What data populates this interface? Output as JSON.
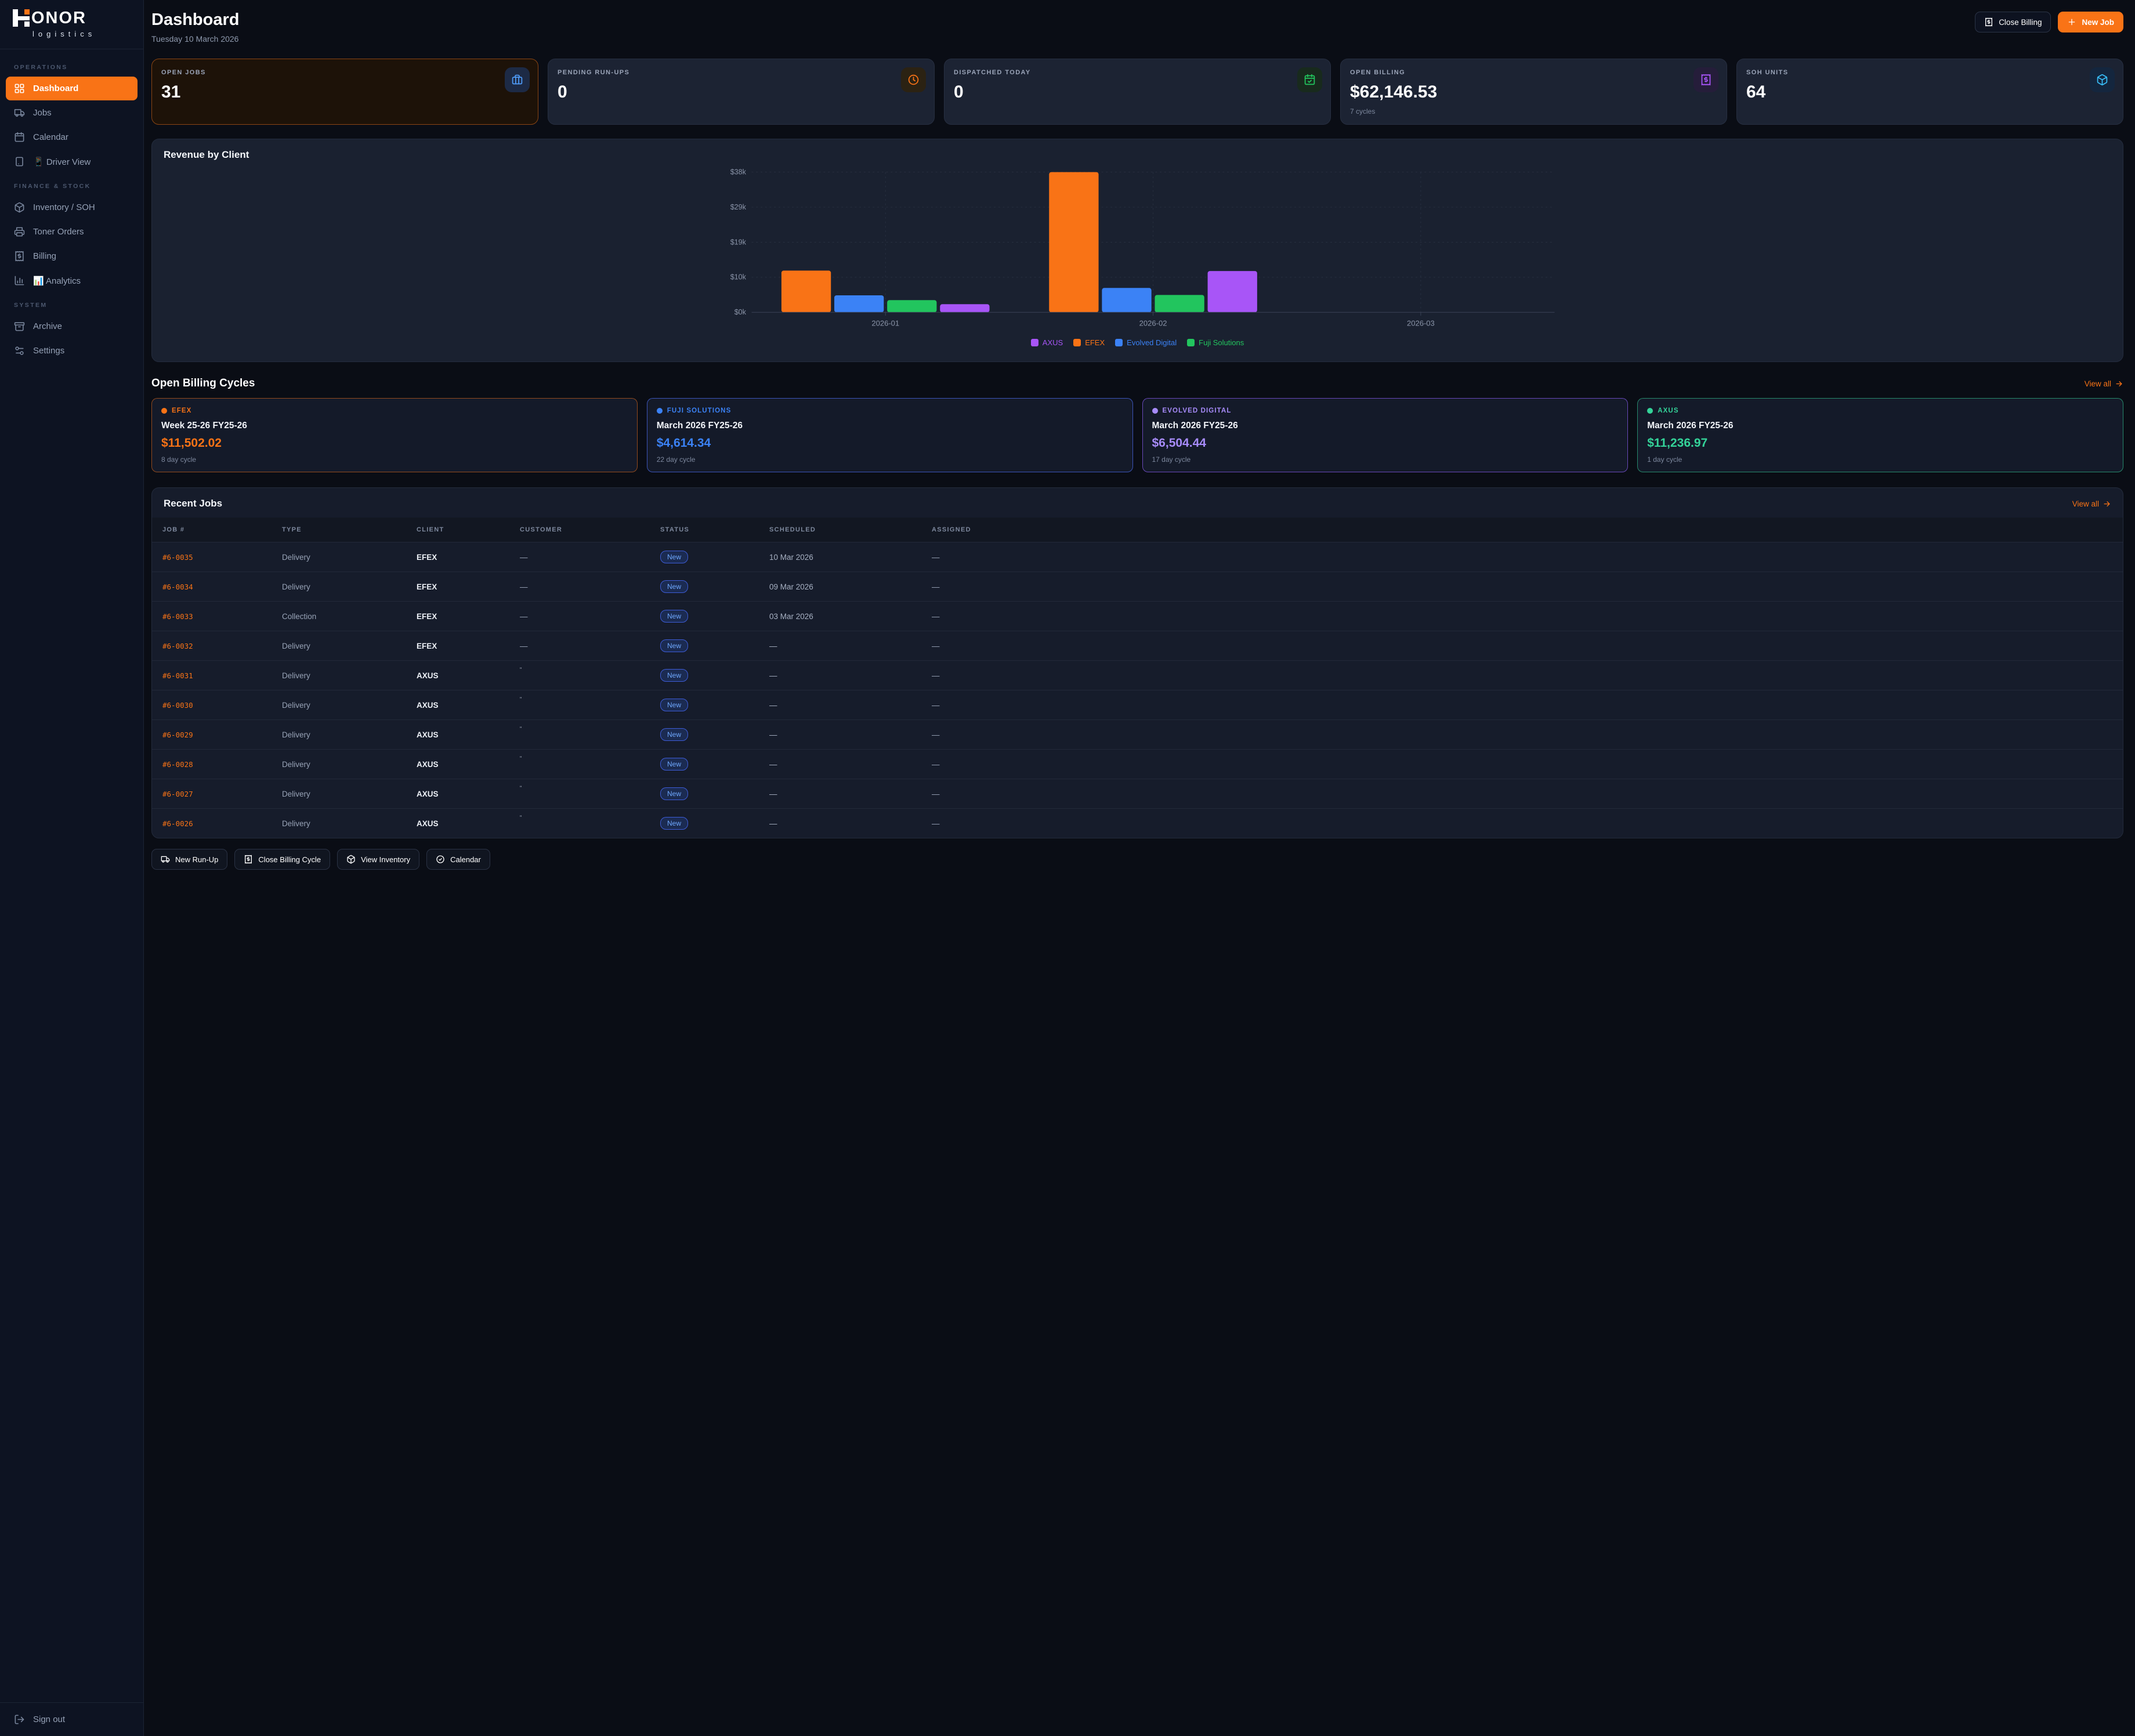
{
  "brand": {
    "mark_letter": "H",
    "name_rest": "ONOR",
    "subtitle": "logistics"
  },
  "header": {
    "title": "Dashboard",
    "date": "Tuesday 10 March 2026",
    "close_billing_label": "Close Billing",
    "new_job_label": "New Job"
  },
  "sidebar": {
    "sections": [
      {
        "label": "OPERATIONS",
        "items": [
          {
            "icon": "dashboard-icon",
            "label": "Dashboard",
            "active": true
          },
          {
            "icon": "truck-icon",
            "label": "Jobs"
          },
          {
            "icon": "calendar-icon",
            "label": "Calendar"
          },
          {
            "icon": "tablet-icon",
            "label": "📱 Driver View"
          }
        ]
      },
      {
        "label": "FINANCE & STOCK",
        "items": [
          {
            "icon": "package-icon",
            "label": "Inventory / SOH"
          },
          {
            "icon": "printer-icon",
            "label": "Toner Orders"
          },
          {
            "icon": "receipt-icon",
            "label": "Billing"
          },
          {
            "icon": "chart-icon",
            "label": "📊 Analytics"
          }
        ]
      },
      {
        "label": "SYSTEM",
        "items": [
          {
            "icon": "archive-icon",
            "label": "Archive"
          },
          {
            "icon": "settings-icon",
            "label": "Settings"
          }
        ]
      }
    ],
    "sign_out_label": "Sign out"
  },
  "stats": [
    {
      "label": "OPEN JOBS",
      "value": "31",
      "icon": "briefcase-icon",
      "icon_color": "#4f9bf8",
      "tile_bg": "#1d2a45",
      "highlight": true
    },
    {
      "label": "PENDING RUN-UPS",
      "value": "0",
      "icon": "clock-icon",
      "icon_color": "#f97316",
      "tile_bg": "#2b2213"
    },
    {
      "label": "DISPATCHED TODAY",
      "value": "0",
      "icon": "calendar-check-icon",
      "icon_color": "#22c55e",
      "tile_bg": "#182a1d"
    },
    {
      "label": "OPEN BILLING",
      "value": "$62,146.53",
      "sub": "7 cycles",
      "icon": "receipt-icon",
      "icon_color": "#a855f7",
      "tile_bg": "#251d3a"
    },
    {
      "label": "SOH UNITS",
      "value": "64",
      "icon": "package-icon",
      "icon_color": "#38bdf8",
      "tile_bg": "#14263e"
    }
  ],
  "chart_data": {
    "type": "bar",
    "title": "Revenue by Client",
    "categories": [
      "2026-01",
      "2026-02",
      "2026-03"
    ],
    "series": [
      {
        "name": "EFEX",
        "color": "#f97316",
        "values": [
          11300,
          38000,
          0
        ]
      },
      {
        "name": "Evolved Digital",
        "color": "#3b82f6",
        "values": [
          4600,
          6600,
          0
        ]
      },
      {
        "name": "Fuji Solutions",
        "color": "#22c55e",
        "values": [
          3300,
          4700,
          0
        ]
      },
      {
        "name": "AXUS",
        "color": "#a855f7",
        "values": [
          2200,
          11200,
          0
        ]
      }
    ],
    "legend_order": [
      "AXUS",
      "EFEX",
      "Evolved Digital",
      "Fuji Solutions"
    ],
    "ylim": [
      0,
      38000
    ],
    "yticks": [
      {
        "label": "$0k",
        "value": 0
      },
      {
        "label": "$10k",
        "value": 9500
      },
      {
        "label": "$19k",
        "value": 19000
      },
      {
        "label": "$29k",
        "value": 28500
      },
      {
        "label": "$38k",
        "value": 38000
      }
    ],
    "grid": "dashed",
    "legend_position": "bottom-center"
  },
  "billing_cycles": {
    "heading": "Open Billing Cycles",
    "view_all_label": "View all",
    "cards": [
      {
        "client": "EFEX",
        "period": "Week 25-26 FY25-26",
        "amount": "$11,502.02",
        "cycle": "8 day cycle",
        "color": "#f97316",
        "border": "rgba(249,115,22,0.55)"
      },
      {
        "client": "FUJI SOLUTIONS",
        "period": "March 2026 FY25-26",
        "amount": "$4,614.34",
        "cycle": "22 day cycle",
        "color": "#3b82f6",
        "border": "rgba(76,110,245,0.70)"
      },
      {
        "client": "EVOLVED DIGITAL",
        "period": "March 2026 FY25-26",
        "amount": "$6,504.44",
        "cycle": "17 day cycle",
        "color": "#a78bfa",
        "border": "rgba(139,92,246,0.70)"
      },
      {
        "client": "AXUS",
        "period": "March 2026 FY25-26",
        "amount": "$11,236.97",
        "cycle": "1 day cycle",
        "color": "#34d399",
        "border": "rgba(52,211,153,0.60)"
      }
    ]
  },
  "recent_jobs": {
    "heading": "Recent Jobs",
    "view_all_label": "View all",
    "columns": [
      "JOB #",
      "TYPE",
      "CLIENT",
      "CUSTOMER",
      "STATUS",
      "SCHEDULED",
      "ASSIGNED"
    ],
    "rows": [
      {
        "job": "#6-0035",
        "type": "Delivery",
        "client": "EFEX",
        "customer": "—",
        "status": "New",
        "scheduled": "10 Mar 2026",
        "assigned": "—"
      },
      {
        "job": "#6-0034",
        "type": "Delivery",
        "client": "EFEX",
        "customer": "—",
        "status": "New",
        "scheduled": "09 Mar 2026",
        "assigned": "—"
      },
      {
        "job": "#6-0033",
        "type": "Collection",
        "client": "EFEX",
        "customer": "—",
        "status": "New",
        "scheduled": "03 Mar 2026",
        "assigned": "—"
      },
      {
        "job": "#6-0032",
        "type": "Delivery",
        "client": "EFEX",
        "customer": "—",
        "status": "New",
        "scheduled": "—",
        "assigned": "—"
      },
      {
        "job": "#6-0031",
        "type": "Delivery",
        "client": "AXUS",
        "customer": "\"",
        "status": "New",
        "scheduled": "—",
        "assigned": "—"
      },
      {
        "job": "#6-0030",
        "type": "Delivery",
        "client": "AXUS",
        "customer": "\"",
        "status": "New",
        "scheduled": "—",
        "assigned": "—"
      },
      {
        "job": "#6-0029",
        "type": "Delivery",
        "client": "AXUS",
        "customer": "\"",
        "status": "New",
        "scheduled": "—",
        "assigned": "—"
      },
      {
        "job": "#6-0028",
        "type": "Delivery",
        "client": "AXUS",
        "customer": "\"",
        "status": "New",
        "scheduled": "—",
        "assigned": "—"
      },
      {
        "job": "#6-0027",
        "type": "Delivery",
        "client": "AXUS",
        "customer": "\"",
        "status": "New",
        "scheduled": "—",
        "assigned": "—"
      },
      {
        "job": "#6-0026",
        "type": "Delivery",
        "client": "AXUS",
        "customer": "\"",
        "status": "New",
        "scheduled": "—",
        "assigned": "—"
      }
    ]
  },
  "quick_actions": [
    {
      "icon": "truck-icon",
      "label": "New Run-Up"
    },
    {
      "icon": "receipt-icon",
      "label": "Close Billing Cycle"
    },
    {
      "icon": "package-icon",
      "label": "View Inventory"
    },
    {
      "icon": "circle-check-icon",
      "label": "Calendar"
    }
  ],
  "colors": {
    "accent": "#f97316",
    "badge_text": "#6ea8fe",
    "badge_border": "#3d5cd7"
  }
}
